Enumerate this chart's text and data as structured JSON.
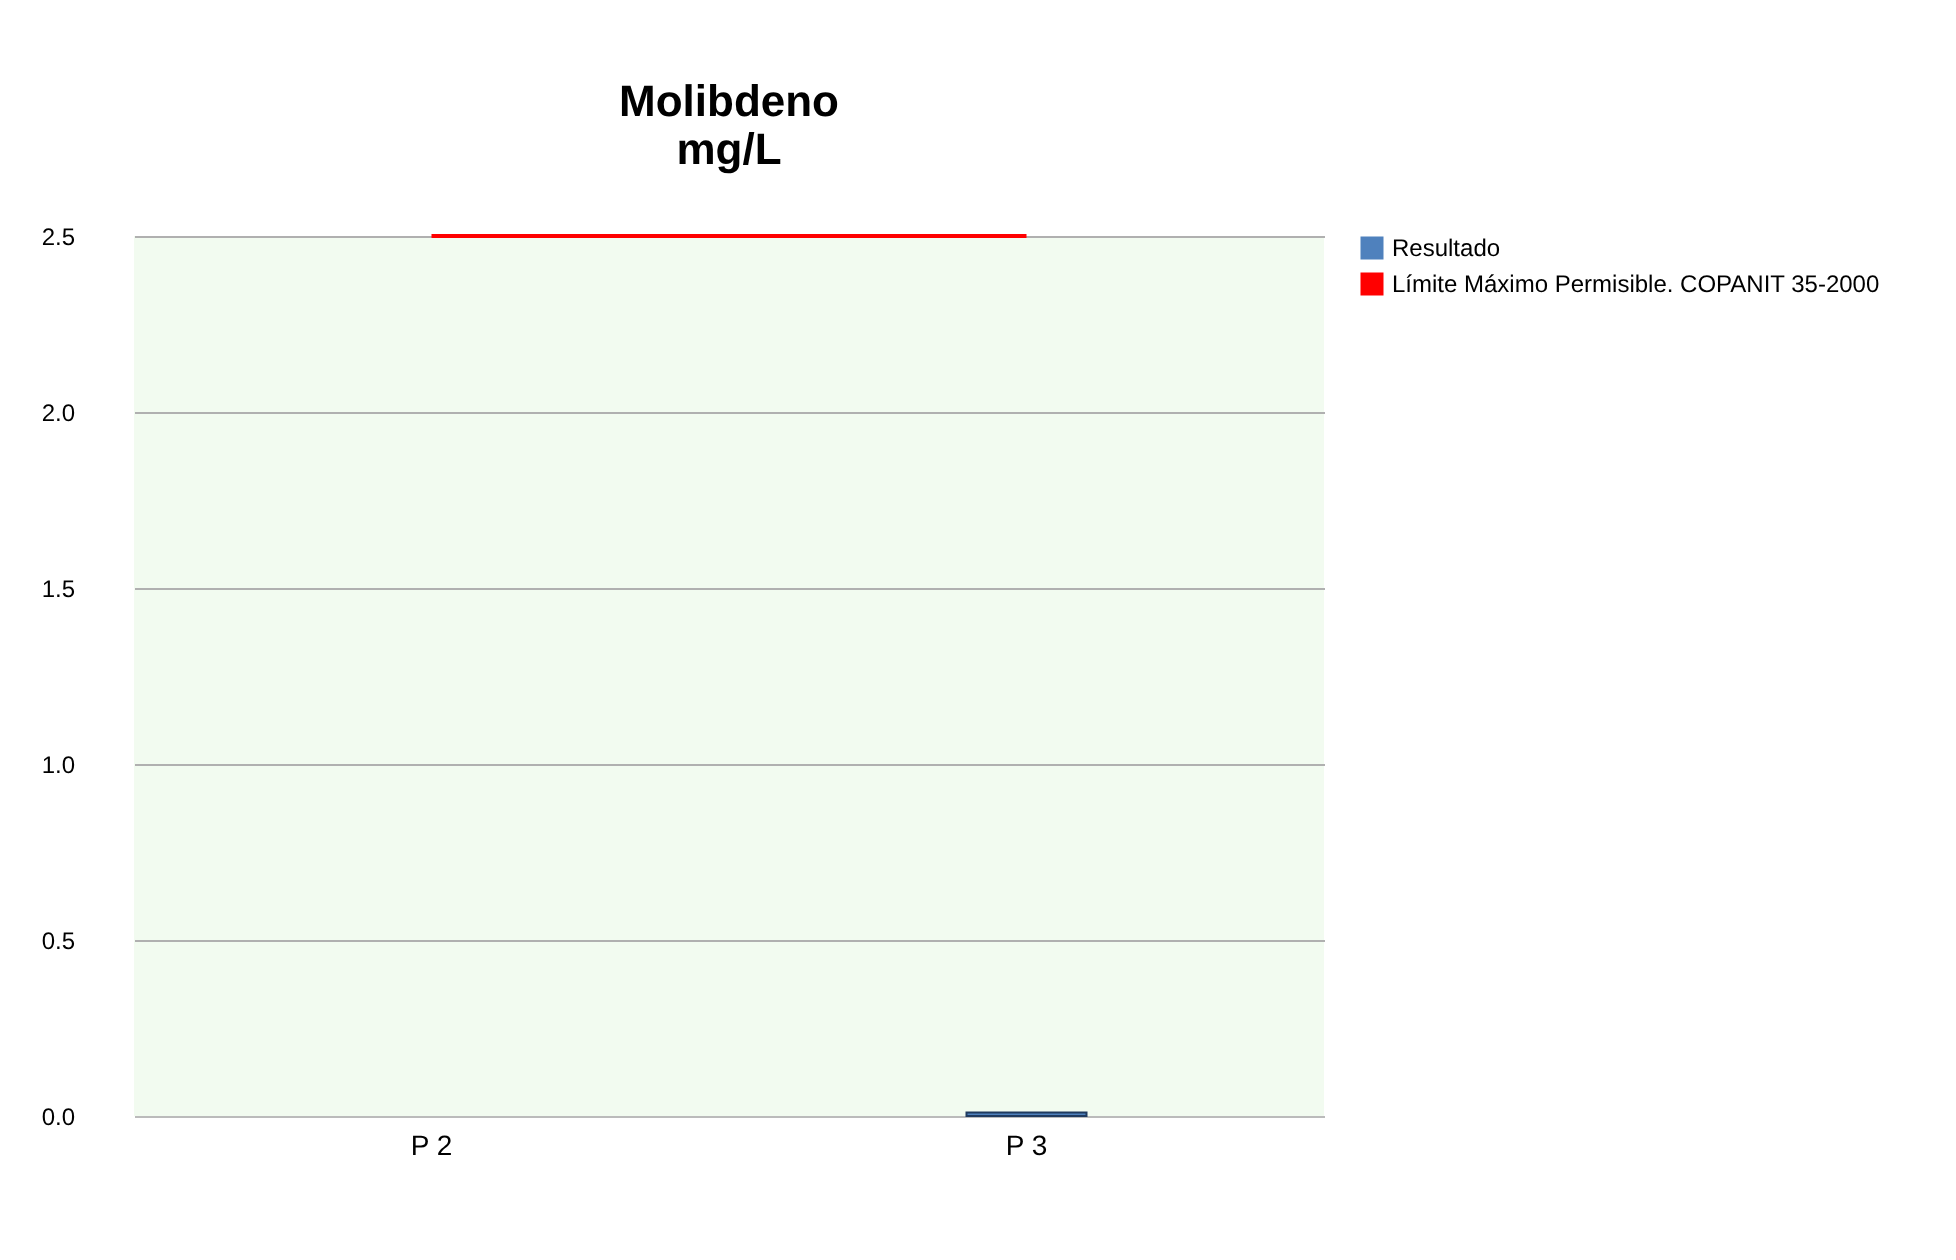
{
  "chart_data": {
    "type": "bar",
    "title": [
      "Molibdeno",
      "mg/L"
    ],
    "categories": [
      "P 2",
      "P 3"
    ],
    "series": [
      {
        "name": "Resultado",
        "color": "#4f81bd",
        "values": [
          null,
          0.01
        ]
      },
      {
        "name": "Límite Máximo Permisible. COPANIT 35-2000",
        "type": "line",
        "color": "#ff0000",
        "values": [
          2.5,
          2.5
        ]
      }
    ],
    "ylim": [
      0,
      2.5
    ],
    "yticks": [
      {
        "value": 0,
        "label": "0.0"
      },
      {
        "value": 0.5,
        "label": "0.5"
      },
      {
        "value": 1,
        "label": "1.0"
      },
      {
        "value": 1.5,
        "label": "1.5"
      },
      {
        "value": 2,
        "label": "2.0"
      },
      {
        "value": 2.5,
        "label": "2.5"
      }
    ],
    "grid": "y",
    "legend": "right"
  }
}
